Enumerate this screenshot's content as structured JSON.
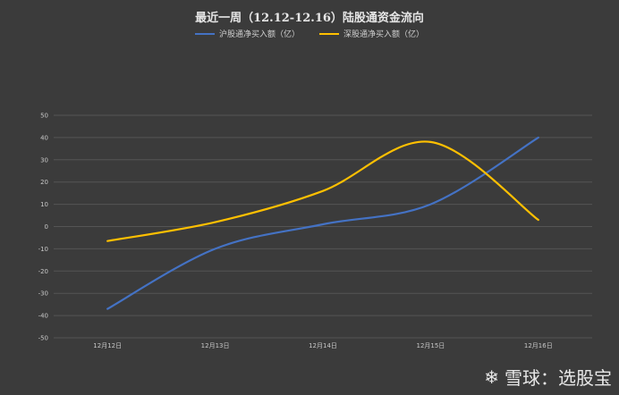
{
  "chart_data": {
    "type": "line",
    "title": "最近一周（12.12-12.16）陆股通资金流向",
    "categories": [
      "12月12日",
      "12月13日",
      "12月14日",
      "12月15日",
      "12月16日"
    ],
    "series": [
      {
        "name": "沪股通净买入额（亿）",
        "values": [
          -37,
          -10,
          1,
          10,
          40
        ],
        "color": "#4472c4"
      },
      {
        "name": "深股通净买入额（亿）",
        "values": [
          -6.5,
          2,
          16,
          38,
          3
        ],
        "color": "#ffc000"
      }
    ],
    "ylim": [
      -50,
      50
    ],
    "yticks": [
      50,
      40,
      30,
      20,
      10,
      0,
      -10,
      -20,
      -30,
      -40,
      -50
    ],
    "grid": true,
    "legend_position": "top",
    "background": "#3b3b3b",
    "gridline_color": "#555555"
  },
  "watermark": {
    "icon": "snowball-logo-icon",
    "text": "雪球：选股宝"
  }
}
